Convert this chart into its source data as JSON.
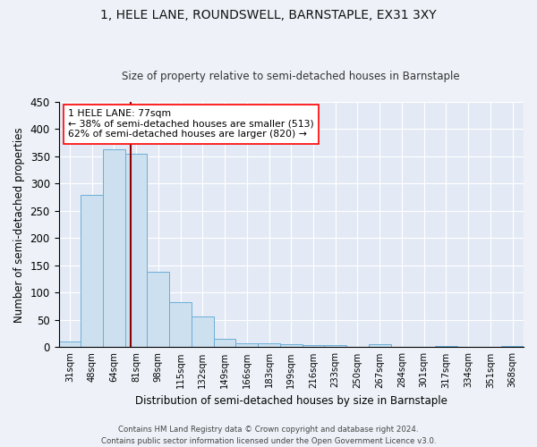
{
  "title": "1, HELE LANE, ROUNDSWELL, BARNSTAPLE, EX31 3XY",
  "subtitle": "Size of property relative to semi-detached houses in Barnstaple",
  "xlabel": "Distribution of semi-detached houses by size in Barnstaple",
  "ylabel": "Number of semi-detached properties",
  "categories": [
    "31sqm",
    "48sqm",
    "64sqm",
    "81sqm",
    "98sqm",
    "115sqm",
    "132sqm",
    "149sqm",
    "166sqm",
    "183sqm",
    "199sqm",
    "216sqm",
    "233sqm",
    "250sqm",
    "267sqm",
    "284sqm",
    "301sqm",
    "317sqm",
    "334sqm",
    "351sqm",
    "368sqm"
  ],
  "values": [
    10,
    280,
    363,
    355,
    138,
    82,
    57,
    16,
    8,
    7,
    6,
    4,
    4,
    0,
    5,
    0,
    0,
    3,
    0,
    0,
    3
  ],
  "bar_color": "#cde0f0",
  "bar_edge_color": "#6aaed6",
  "property_sqm": 77,
  "annotation_text": "1 HELE LANE: 77sqm\n← 38% of semi-detached houses are smaller (513)\n62% of semi-detached houses are larger (820) →",
  "footer1": "Contains HM Land Registry data © Crown copyright and database right 2024.",
  "footer2": "Contains public sector information licensed under the Open Government Licence v3.0.",
  "ylim": [
    0,
    450
  ],
  "yticks": [
    0,
    50,
    100,
    150,
    200,
    250,
    300,
    350,
    400,
    450
  ],
  "background_color": "#eef2f8",
  "plot_bg_color": "#e4eaf5"
}
